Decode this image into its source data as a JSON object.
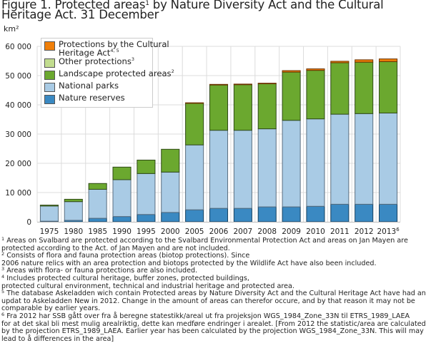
{
  "figure": {
    "title_main": "Figure 1. Protected areas",
    "title_sup": "1",
    "title_rest": " by Nature Diversity Act and the Cultural Heritage Act. 31 December",
    "unit_label": "km²"
  },
  "legend": {
    "items": [
      {
        "label": "Protections by the Cultural",
        "label2": "Heritage Act",
        "sup": "4, 5",
        "color": "#f07f09"
      },
      {
        "label": "Other protections",
        "sup": "3",
        "color": "#c2dd8f"
      },
      {
        "label": "Landscape protected areas",
        "sup": "2",
        "color": "#6ba82f"
      },
      {
        "label": "National parks",
        "sup": "",
        "color": "#a9cbe5"
      },
      {
        "label": "Nature reserves",
        "sup": "",
        "color": "#3a89c2"
      }
    ]
  },
  "chart_data": {
    "type": "bar",
    "stacked": true,
    "title": "Figure 1. Protected areas¹ by Nature Diversity Act and the Cultural Heritage Act. 31 December",
    "xlabel": "",
    "ylabel": "km²",
    "ylim": [
      0,
      60000
    ],
    "yticks": [
      0,
      10000,
      20000,
      30000,
      40000,
      50000,
      60000
    ],
    "ytick_labels": [
      "0",
      "10 000",
      "20 000",
      "30 000",
      "40 000",
      "50 000",
      "60 000"
    ],
    "grid": true,
    "legend_position": "top-left",
    "categories": [
      "1975",
      "1980",
      "1985",
      "1990",
      "1995",
      "2000",
      "2005",
      "2006",
      "2007",
      "2008",
      "2009",
      "2010",
      "2011",
      "2012",
      "2013"
    ],
    "category_sups": [
      "",
      "",
      "",
      "",
      "",
      "",
      "",
      "",
      "",
      "",
      "",
      "",
      "",
      "",
      "6"
    ],
    "series": [
      {
        "name": "Nature reserves",
        "color": "#3a89c2",
        "values": [
          200,
          500,
          1200,
          1800,
          2500,
          3200,
          4100,
          4600,
          4600,
          5100,
          5100,
          5300,
          6000,
          6000,
          6000
        ]
      },
      {
        "name": "National parks",
        "color": "#a9cbe5",
        "values": [
          5200,
          6400,
          9900,
          12600,
          14000,
          13800,
          22200,
          26700,
          26700,
          26700,
          29600,
          29900,
          30800,
          31000,
          31200
        ]
      },
      {
        "name": "Landscape protected areas",
        "color": "#6ba82f",
        "values": [
          300,
          800,
          2000,
          4300,
          4600,
          7800,
          14300,
          15500,
          15600,
          15400,
          16500,
          16600,
          17600,
          17600,
          17600
        ]
      },
      {
        "name": "Other protections",
        "color": "#c2dd8f",
        "values": [
          0,
          0,
          0,
          0,
          0,
          0,
          0,
          0,
          0,
          0,
          0,
          0,
          0,
          0,
          0
        ]
      },
      {
        "name": "Protections by the Cultural Heritage Act",
        "color": "#f07f09",
        "values": [
          0,
          0,
          0,
          0,
          0,
          0,
          100,
          200,
          200,
          200,
          500,
          500,
          500,
          800,
          900
        ]
      }
    ]
  },
  "notes": [
    {
      "sup": "1",
      "text": " Areas on Svalbard are protected according to the Svalbard Environmental Protection Act and areas on Jan Mayen are protected according to the Act. of Jan Mayen and are not included."
    },
    {
      "sup": "2",
      "text": " Consists of flora and fauna protection areas (biotop protections). Since\n2006 nature relics with an area protection and biotops protected by the Wildlife Act have also been included."
    },
    {
      "sup": "3",
      "text": " Areas with flora- or fauna protections are also included."
    },
    {
      "sup": "4",
      "text": " Includes protected cultural heritage, buffer zones, protected buildings,\nprotected cultural environment, technical and industrial heritage and protected area."
    },
    {
      "sup": "5",
      "text": " The database Askeladden wich contain Protected areas by Nature Diversity Act and the Cultural Heritage Act have had an updat to Askeladden New in 2012. Change in the amount of areas can therefor occure, and by that reason it may not be comparable by earlier years."
    },
    {
      "sup": "6",
      "text": " Fra 2012 har SSB gått over fra å beregne statestikk/areal ut fra projeksjon WGS_1984_Zone_33N til ETRS_1989_LAEA\nfor at det skal bli mest mulig arealriktig, dette kan medføre endringer i arealet. [From 2012 the statistic/area are calculated by the projection ETRS_1989_LAEA. Earlier year has been calculated by the projection WGS_1984_Zone_33N. This will may lead to å differences in the area]"
    }
  ]
}
